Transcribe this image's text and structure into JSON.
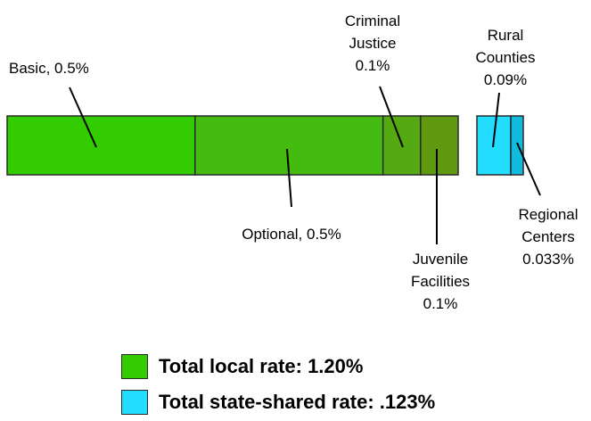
{
  "chart_data": {
    "type": "bar",
    "orientation": "horizontal-stacked",
    "groups": [
      {
        "name": "Total local rate: 1.20%",
        "color": "#33cc00",
        "segments": [
          {
            "key": "basic",
            "label_lines": [
              "Basic, 0.5%"
            ],
            "value": 0.5,
            "color": "#33cc00"
          },
          {
            "key": "optional",
            "label_lines": [
              "Optional, 0.5%"
            ],
            "value": 0.5,
            "color": "#44bb11"
          },
          {
            "key": "criminal-justice",
            "label_lines": [
              "Criminal",
              "Justice",
              "0.1%"
            ],
            "value": 0.1,
            "color": "#55aa11"
          },
          {
            "key": "juvenile-facilities",
            "label_lines": [
              "Juvenile",
              "Facilities",
              "0.1%"
            ],
            "value": 0.1,
            "color": "#5f9910"
          }
        ]
      },
      {
        "name": "Total state-shared rate: .123%",
        "color": "#22ddff",
        "segments": [
          {
            "key": "rural-counties",
            "label_lines": [
              "Rural",
              "Counties",
              "0.09%"
            ],
            "value": 0.09,
            "color": "#22ddff"
          },
          {
            "key": "regional-centers",
            "label_lines": [
              "Regional",
              "Centers",
              "0.033%"
            ],
            "value": 0.033,
            "color": "#11bbdd"
          }
        ]
      }
    ],
    "legend": {
      "placement": "bottom",
      "items": [
        {
          "label": "Total local rate: 1.20%",
          "color": "#33cc00"
        },
        {
          "label": "Total state-shared rate: .123%",
          "color": "#22ddff"
        }
      ]
    }
  }
}
